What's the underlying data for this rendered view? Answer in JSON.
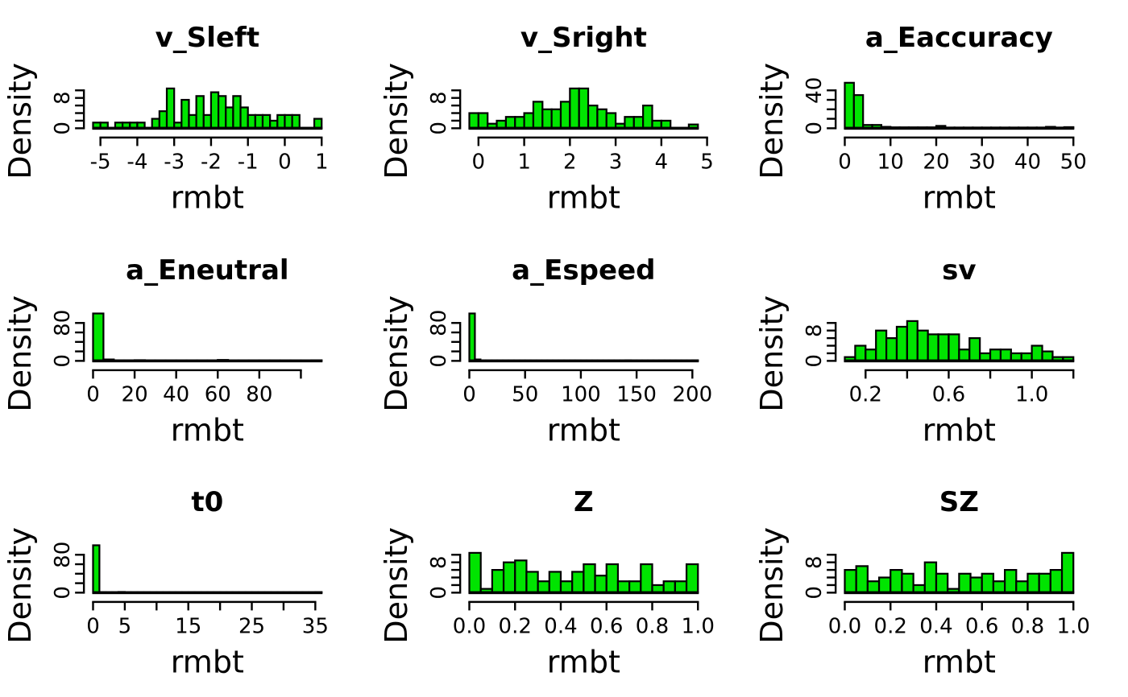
{
  "figure": {
    "background": "#ffffff",
    "bar_fill": "#00E400",
    "bar_stroke": "#000000",
    "axis_color": "#000000",
    "text_color": "#000000"
  },
  "chart_data": [
    {
      "type": "bar",
      "subtype": "histogram",
      "title": "v_Sleft",
      "xlabel": "rmbt",
      "ylabel": "Density",
      "bin_start": -5.2,
      "bin_width": 0.2,
      "values": [
        1.5,
        1.5,
        0,
        1.5,
        1.5,
        1.5,
        1.5,
        0,
        2.5,
        4.5,
        10.5,
        1.5,
        7.5,
        3.5,
        8.5,
        3.5,
        9.5,
        8.5,
        5.5,
        8.5,
        5.5,
        3.5,
        3.5,
        3.5,
        2,
        3.5,
        3.5,
        3.5,
        0,
        0,
        2.5
      ],
      "xticks": [
        -5,
        -4,
        -3,
        -2,
        -1,
        0,
        1
      ],
      "xtick_labels": [
        "-5",
        "-4",
        "-3",
        "-2",
        "-1",
        "0",
        "1"
      ],
      "yticks": [
        0,
        2,
        4,
        6,
        8,
        10
      ],
      "ytick_labels": [
        "0",
        "",
        "",
        "",
        "8",
        ""
      ],
      "ylim": [
        0,
        10
      ],
      "xlim": [
        -5.2,
        1.0
      ]
    },
    {
      "type": "bar",
      "subtype": "histogram",
      "title": "v_Sright",
      "xlabel": "rmbt",
      "ylabel": "Density",
      "bin_start": -0.2,
      "bin_width": 0.2,
      "values": [
        4,
        4,
        1.2,
        2,
        3,
        3,
        4,
        7,
        5,
        5,
        7,
        10.5,
        10.5,
        6,
        5,
        4,
        1.2,
        3,
        3,
        6,
        2,
        2,
        0,
        0,
        1
      ],
      "xticks": [
        0,
        1,
        2,
        3,
        4,
        5
      ],
      "xtick_labels": [
        "0",
        "1",
        "2",
        "3",
        "4",
        "5"
      ],
      "yticks": [
        0,
        2,
        4,
        6,
        8,
        10
      ],
      "ytick_labels": [
        "0",
        "",
        "",
        "",
        "8",
        ""
      ],
      "ylim": [
        0,
        10
      ],
      "xlim": [
        -0.2,
        5.0
      ]
    },
    {
      "type": "bar",
      "subtype": "histogram",
      "title": "a_Eaccuracy",
      "xlabel": "rmbt",
      "ylabel": "Density",
      "bin_start": 0,
      "bin_width": 2,
      "values": [
        48,
        35,
        3.5,
        3.5,
        1.5,
        1,
        1,
        1,
        1,
        1,
        2.5,
        0.8,
        0.8,
        0.8,
        0.8,
        0.8,
        0.8,
        0.8,
        0.8,
        0.8,
        0.8,
        0.8,
        1.5,
        0.8,
        1.2
      ],
      "xticks": [
        0,
        10,
        20,
        30,
        40,
        50
      ],
      "xtick_labels": [
        "0",
        "10",
        "20",
        "30",
        "40",
        "50"
      ],
      "yticks": [
        0,
        10,
        20,
        30,
        40
      ],
      "ytick_labels": [
        "0",
        "",
        "",
        "",
        "40"
      ],
      "ylim": [
        0,
        40
      ],
      "xlim": [
        0,
        50
      ]
    },
    {
      "type": "bar",
      "subtype": "histogram",
      "title": "a_Eneutral",
      "xlabel": "rmbt",
      "ylabel": "Density",
      "bin_start": 0,
      "bin_width": 5,
      "values": [
        100,
        3,
        1,
        1,
        1.5,
        0.8,
        0.8,
        0.8,
        0.8,
        0.8,
        0.8,
        0.8,
        2,
        0.8,
        0.8,
        0.8,
        0.8,
        0.8,
        0.8,
        0.8,
        0.8,
        1.2
      ],
      "xticks": [
        0,
        20,
        40,
        60,
        80,
        100
      ],
      "xtick_labels": [
        "0",
        "20",
        "40",
        "60",
        "80",
        ""
      ],
      "yticks": [
        0,
        20,
        40,
        60,
        80
      ],
      "ytick_labels": [
        "0",
        "",
        "",
        "",
        "80"
      ],
      "ylim": [
        0,
        80
      ],
      "xlim": [
        0,
        110
      ]
    },
    {
      "type": "bar",
      "subtype": "histogram",
      "title": "a_Espeed",
      "xlabel": "rmbt",
      "ylabel": "Density",
      "bin_start": 0,
      "bin_width": 5,
      "values": [
        100,
        3,
        0.7,
        0.7,
        0.7,
        0.7,
        0.7,
        0.7,
        0.7,
        0.7,
        0.7,
        0.7,
        0.7,
        0.7,
        0.7,
        0.7,
        0.7,
        0.7,
        0.7,
        0.7,
        0.7,
        0.7,
        0.7,
        0.7,
        0.7,
        0.7,
        0.7,
        0.7,
        1.3,
        0.7,
        0.7,
        0.7,
        0.7,
        0.7,
        0.7,
        0.7,
        0.7,
        0.7,
        0.7,
        0.7,
        1
      ],
      "xticks": [
        0,
        50,
        100,
        150,
        200
      ],
      "xtick_labels": [
        "0",
        "50",
        "100",
        "150",
        "200"
      ],
      "yticks": [
        0,
        20,
        40,
        60,
        80
      ],
      "ytick_labels": [
        "0",
        "",
        "",
        "",
        "80"
      ],
      "ylim": [
        0,
        80
      ],
      "xlim": [
        0,
        205
      ]
    },
    {
      "type": "bar",
      "subtype": "histogram",
      "title": "sv",
      "xlabel": "rmbt",
      "ylabel": "Density",
      "bin_start": 0.1,
      "bin_width": 0.05,
      "values": [
        1,
        4,
        3,
        8,
        6,
        9,
        10.5,
        8,
        7,
        7,
        7,
        3,
        6,
        2,
        3,
        3,
        2,
        2,
        4,
        2.5,
        1,
        1
      ],
      "xticks": [
        0.2,
        0.4,
        0.6,
        0.8,
        1.0,
        1.2
      ],
      "xtick_labels": [
        "0.2",
        "",
        "0.6",
        "",
        "1.0",
        ""
      ],
      "yticks": [
        0,
        2,
        4,
        6,
        8,
        10
      ],
      "ytick_labels": [
        "0",
        "",
        "",
        "",
        "8",
        ""
      ],
      "ylim": [
        0,
        10
      ],
      "xlim": [
        0.1,
        1.2
      ]
    },
    {
      "type": "bar",
      "subtype": "histogram",
      "title": "t0",
      "xlabel": "rmbt",
      "ylabel": "Density",
      "bin_start": 0,
      "bin_width": 1,
      "values": [
        100,
        1,
        0.7,
        0.7,
        1.5,
        0.7,
        0.7,
        0.7,
        0.7,
        0.7,
        0.7,
        0.7,
        0.7,
        0.7,
        0.7,
        0.7,
        0.7,
        0.7,
        0.7,
        0.7,
        0.7,
        0.7,
        0.7,
        0.7,
        0.7,
        0.7,
        0.7,
        0.7,
        0.7,
        0.7,
        0.7,
        0.7,
        0.7,
        0.7,
        0.7,
        1
      ],
      "xticks": [
        0,
        5,
        10,
        15,
        20,
        25,
        30,
        35
      ],
      "xtick_labels": [
        "0",
        "5",
        "",
        "15",
        "",
        "25",
        "",
        "35"
      ],
      "yticks": [
        0,
        20,
        40,
        60,
        80
      ],
      "ytick_labels": [
        "0",
        "",
        "",
        "",
        "80"
      ],
      "ylim": [
        0,
        80
      ],
      "xlim": [
        0,
        36
      ]
    },
    {
      "type": "bar",
      "subtype": "histogram",
      "title": "Z",
      "xlabel": "rmbt",
      "ylabel": "Density",
      "bin_start": 0,
      "bin_width": 0.05,
      "values": [
        10.5,
        1,
        6,
        8,
        8.5,
        5.5,
        3,
        5.5,
        3,
        5.5,
        7.5,
        4.5,
        7.5,
        3,
        3,
        7.5,
        2,
        3,
        3,
        7.5
      ],
      "xticks": [
        0,
        0.2,
        0.4,
        0.6,
        0.8,
        1.0
      ],
      "xtick_labels": [
        "0.0",
        "0.2",
        "0.4",
        "0.6",
        "0.8",
        "1.0"
      ],
      "yticks": [
        0,
        2,
        4,
        6,
        8,
        10
      ],
      "ytick_labels": [
        "0",
        "",
        "",
        "",
        "8",
        ""
      ],
      "ylim": [
        0,
        10
      ],
      "xlim": [
        0,
        1
      ]
    },
    {
      "type": "bar",
      "subtype": "histogram",
      "title": "SZ",
      "xlabel": "rmbt",
      "ylabel": "Density",
      "bin_start": 0,
      "bin_width": 0.05,
      "values": [
        6,
        7,
        3,
        4,
        6,
        5,
        2,
        8,
        5,
        1,
        5,
        4,
        5,
        3,
        6,
        3,
        5,
        5,
        6,
        10.5
      ],
      "xticks": [
        0,
        0.2,
        0.4,
        0.6,
        0.8,
        1.0
      ],
      "xtick_labels": [
        "0.0",
        "0.2",
        "0.4",
        "0.6",
        "0.8",
        "1.0"
      ],
      "yticks": [
        0,
        2,
        4,
        6,
        8,
        10
      ],
      "ytick_labels": [
        "0",
        "",
        "",
        "",
        "8",
        ""
      ],
      "ylim": [
        0,
        10
      ],
      "xlim": [
        0,
        1
      ]
    }
  ]
}
